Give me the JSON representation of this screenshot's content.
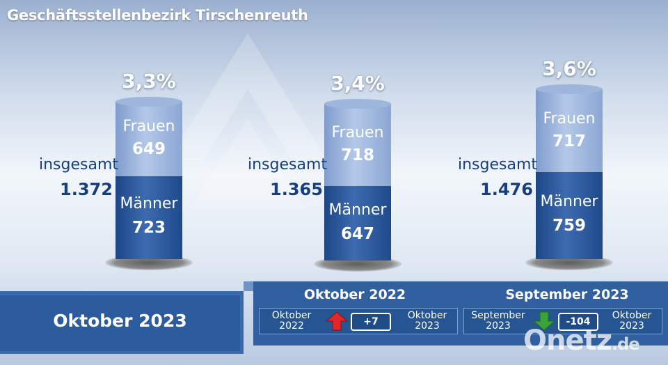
{
  "title": "Geschäftsstellenbezirk Tirschenreuth",
  "chart_data": {
    "type": "bar",
    "stacked": true,
    "categories": [
      "Oktober 2023",
      "Oktober 2022",
      "September 2023"
    ],
    "series": [
      {
        "name": "Frauen",
        "values": [
          649,
          718,
          717
        ]
      },
      {
        "name": "Männer",
        "values": [
          723,
          647,
          759
        ]
      }
    ],
    "totals": [
      {
        "label": "insgesamt",
        "value": "1.372"
      },
      {
        "label": "insgesamt",
        "value": "1.365"
      },
      {
        "label": "insgesamt",
        "value": "1.476"
      }
    ],
    "rates": [
      "3,3%",
      "3,4%",
      "3,6%"
    ],
    "labels": [
      {
        "frauen": "Frauen",
        "frauen_value": "649",
        "maenner": "Männer",
        "maenner_value": "723"
      },
      {
        "frauen": "Frauen",
        "frauen_value": "718",
        "maenner": "Männer",
        "maenner_value": "647"
      },
      {
        "frauen": "Frauen",
        "frauen_value": "717",
        "maenner": "Männer",
        "maenner_value": "759"
      }
    ]
  },
  "current_period": "Oktober 2023",
  "comparisons": [
    {
      "title": "Oktober 2022",
      "left_label": [
        "Oktober",
        "2022"
      ],
      "delta": "+7",
      "direction": "up",
      "right_label": [
        "Oktober",
        "2023"
      ],
      "arrow_color": "#e2262b"
    },
    {
      "title": "September 2023",
      "left_label": [
        "September",
        "2023"
      ],
      "delta": "-104",
      "direction": "down",
      "right_label": [
        "Oktober",
        "2023"
      ],
      "arrow_color": "#3aa43a"
    }
  ],
  "watermark": {
    "main": "Onetz",
    "suffix": ".de"
  },
  "colors": {
    "frauen": "#9fb7df",
    "maenner": "#2a5597",
    "text_dark": "#153f7f"
  }
}
